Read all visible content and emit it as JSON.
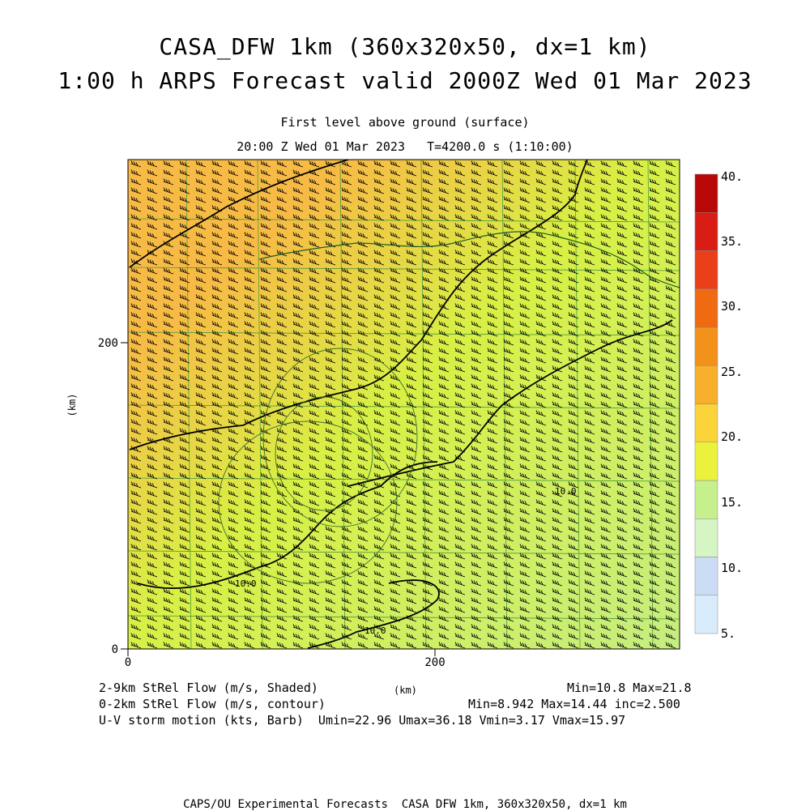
{
  "header": {
    "title_line1": "CASA_DFW 1km (360x320x50, dx=1 km)",
    "title_line2": "1:00 h ARPS Forecast valid 2000Z Wed 01 Mar 2023",
    "subtitle_level": "First level above ground (surface)",
    "subtitle_time": "20:00 Z Wed 01 Mar 2023   T=4200.0 s (1:10:00)"
  },
  "axes": {
    "x_unit": "(km)",
    "y_unit": "(km)",
    "x_ticks": [
      "0",
      "200"
    ],
    "y_ticks": [
      "0",
      "200"
    ],
    "x_range": [
      0,
      360
    ],
    "y_range": [
      0,
      320
    ]
  },
  "colorbar": {
    "labels": [
      "5.",
      "10.",
      "15.",
      "20.",
      "25.",
      "30.",
      "35.",
      "40."
    ],
    "colors": [
      "#d8ecfb",
      "#ccdcf5",
      "#d6f5c4",
      "#c6f08c",
      "#ebf23c",
      "#fbd43a",
      "#f8b02c",
      "#f3921a",
      "#f06a12",
      "#e9401a",
      "#d81e14",
      "#b80808"
    ]
  },
  "map_features": {
    "contour_labels": [
      "10.0",
      "10.0",
      "10.0"
    ],
    "field_colors": {
      "high": "#f7bb45",
      "mid": "#d8f045",
      "low": "#c6ee80"
    }
  },
  "legend": {
    "line1_left": "2-9km StRel Flow (m/s, Shaded)",
    "line1_mid": "(km)",
    "line1_right": "Min=10.8 Max=21.8",
    "line2_left": "0-2km StRel Flow (m/s, contour)",
    "line2_right": "Min=8.942 Max=14.44 inc=2.500",
    "line3": "U-V storm motion (kts, Barb)  Umin=22.96 Umax=36.18 Vmin=3.17 Vmax=15.97"
  },
  "footer": {
    "credit": "CAPS/OU Experimental Forecasts  CASA DFW 1km, 360x320x50, dx=1 km"
  }
}
